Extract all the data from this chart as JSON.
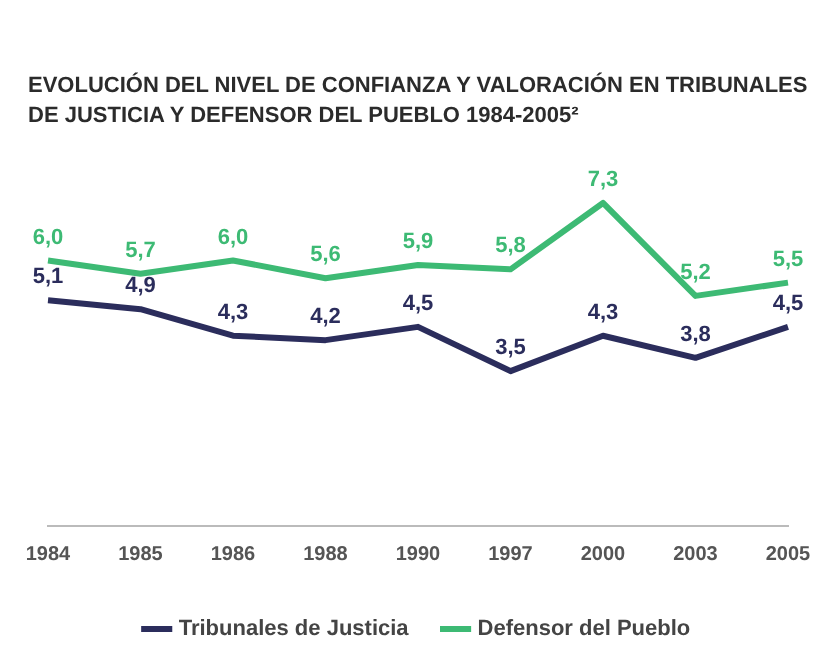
{
  "chart_data": {
    "type": "line",
    "title": "EVOLUCIÓN DEL NIVEL DE CONFIANZA Y VALORACIÓN EN TRIBUNALES DE JUSTICIA Y DEFENSOR DEL PUEBLO 1984-2005²",
    "categories": [
      "1984",
      "1985",
      "1986",
      "1988",
      "1990",
      "1997",
      "2000",
      "2003",
      "2005"
    ],
    "series": [
      {
        "name": "Tribunales de Justicia",
        "color": "#2b2d5c",
        "values": [
          5.1,
          4.9,
          4.3,
          4.2,
          4.5,
          3.5,
          4.3,
          3.8,
          4.5
        ],
        "value_labels": [
          "5,1",
          "4,9",
          "4,3",
          "4,2",
          "4,5",
          "3,5",
          "4,3",
          "3,8",
          "4,5"
        ]
      },
      {
        "name": "Defensor del Pueblo",
        "color": "#3dba74",
        "values": [
          6.0,
          5.7,
          6.0,
          5.6,
          5.9,
          5.8,
          7.3,
          5.2,
          5.5
        ],
        "value_labels": [
          "6,0",
          "5,7",
          "6,0",
          "5,6",
          "5,9",
          "5,8",
          "7,3",
          "5,2",
          "5,5"
        ]
      }
    ],
    "legend": "bottom",
    "grid": false,
    "marker": "none",
    "line_style": "solid"
  }
}
